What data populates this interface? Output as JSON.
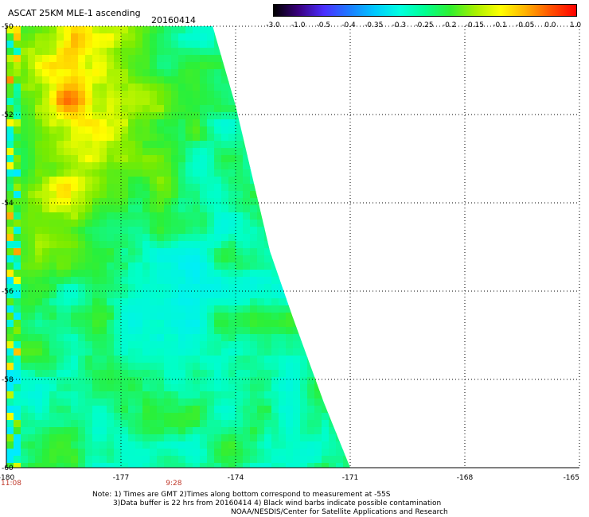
{
  "header": {
    "title": "ASCAT 25KM MLE-1 ascending",
    "date": "20160414"
  },
  "colorbar": {
    "ticks": [
      "-3.0",
      "-1.0",
      "-0.5",
      "-0.4",
      "-0.35",
      "-0.3",
      "-0.25",
      "-0.2",
      "-0.15",
      "-0.1",
      "-0.05",
      "0.0",
      "1.0"
    ],
    "stops": [
      "#000000",
      "#3a0080",
      "#4b30ff",
      "#1d7bff",
      "#00c8ff",
      "#00ffe0",
      "#00ff90",
      "#30f030",
      "#a8f000",
      "#ffff00",
      "#ffb000",
      "#ff5000",
      "#ff0000"
    ]
  },
  "map": {
    "lon_range": [
      -180,
      -165
    ],
    "lat_range": [
      -60,
      -50
    ],
    "lon_ticks": [
      "-180",
      "-177",
      "-174",
      "-171",
      "-168",
      "-165"
    ],
    "lat_ticks": [
      "-50",
      "-52",
      "-54",
      "-56",
      "-58",
      "-60"
    ],
    "time_labels": [
      {
        "lon": -180,
        "text": "11:08"
      },
      {
        "lon": -175.7,
        "text": "9:28"
      }
    ],
    "swath_east_edge": [
      {
        "lat": -50,
        "lon": -174.6
      },
      {
        "lat": -51.8,
        "lon": -174.0
      },
      {
        "lat": -55.1,
        "lon": -173.1
      },
      {
        "lat": -56.6,
        "lon": -172.5
      },
      {
        "lat": -58.5,
        "lon": -171.7
      },
      {
        "lat": -60,
        "lon": -171.0
      }
    ],
    "orange_zone": {
      "lat_span": [
        -50,
        -54.5
      ],
      "lon_span": [
        -179.5,
        -176.5
      ]
    }
  },
  "notes": {
    "line1": "Note: 1) Times are GMT 2)Times along bottom correspond to measurement at -55S",
    "line2": "3)Data buffer is 22 hrs from 20160414 4) Black wind barbs indicate possible contamination",
    "line3": "NOAA/NESDIS/Center for Satellite Applications and Research"
  }
}
